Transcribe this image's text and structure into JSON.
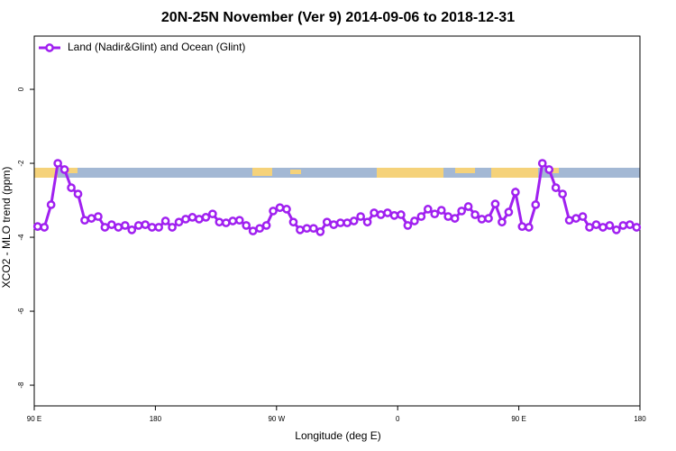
{
  "chart_data": {
    "type": "line",
    "title": "20N-25N November (Ver 9)   2014-09-06 to 2018-12-31",
    "x_label": "Longitude (deg E)",
    "y_label": "XCO2 - MLO trend (ppm)",
    "x": [
      92.5,
      97.5,
      102.5,
      107.5,
      112.5,
      117.5,
      122.5,
      127.5,
      132.5,
      137.5,
      142.5,
      147.5,
      152.5,
      157.5,
      162.5,
      167.5,
      172.5,
      177.5,
      182.5,
      187.5,
      192.5,
      197.5,
      202.5,
      207.5,
      212.5,
      217.5,
      222.5,
      227.5,
      232.5,
      237.5,
      242.5,
      247.5,
      252.5,
      257.5,
      262.5,
      267.5,
      272.5,
      277.5,
      282.5,
      287.5,
      292.5,
      297.5,
      302.5,
      307.5,
      312.5,
      317.5,
      322.5,
      327.5,
      332.5,
      337.5,
      342.5,
      347.5,
      352.5,
      357.5,
      362.5,
      367.5,
      372.5,
      377.5,
      382.5,
      387.5,
      392.5,
      397.5,
      402.5,
      407.5,
      412.5,
      417.5,
      422.5,
      427.5,
      432.5,
      437.5,
      442.5,
      447.5,
      452.5,
      457.5,
      462.5,
      467.5,
      472.5,
      477.5,
      482.5,
      487.5,
      492.5,
      497.5,
      502.5,
      507.5,
      512.5,
      517.5,
      522.5,
      527.5,
      532.5,
      537.5
    ],
    "series": [
      {
        "name": "Land (Nadir&Glint) and Ocean (Glint)",
        "color": "#a020f0",
        "values": [
          -3.71,
          -3.73,
          -3.12,
          -2.0,
          -2.17,
          -2.66,
          -2.83,
          -3.54,
          -3.49,
          -3.44,
          -3.73,
          -3.66,
          -3.73,
          -3.68,
          -3.8,
          -3.68,
          -3.66,
          -3.73,
          -3.73,
          -3.56,
          -3.73,
          -3.59,
          -3.51,
          -3.46,
          -3.51,
          -3.46,
          -3.37,
          -3.59,
          -3.61,
          -3.56,
          -3.54,
          -3.68,
          -3.83,
          -3.76,
          -3.68,
          -3.29,
          -3.2,
          -3.24,
          -3.59,
          -3.8,
          -3.76,
          -3.76,
          -3.85,
          -3.59,
          -3.66,
          -3.61,
          -3.61,
          -3.56,
          -3.44,
          -3.59,
          -3.34,
          -3.39,
          -3.34,
          -3.41,
          -3.39,
          -3.68,
          -3.56,
          -3.44,
          -3.24,
          -3.37,
          -3.27,
          -3.44,
          -3.49,
          -3.29,
          -3.17,
          -3.39,
          -3.51,
          -3.49,
          -3.1,
          -3.59,
          -3.32,
          -2.78,
          -3.71,
          -3.73,
          -3.12,
          -2.0,
          -2.17,
          -2.66,
          -2.83,
          -3.54,
          -3.49,
          -3.44,
          -3.73,
          -3.66,
          -3.73,
          -3.68,
          -3.8,
          -3.68,
          -3.66,
          -3.73
        ]
      }
    ],
    "xlim": [
      90,
      540
    ],
    "xticks": [
      {
        "value": 90,
        "label": "90 E"
      },
      180,
      {
        "value": 270,
        "label": "90 W"
      },
      {
        "value": 360,
        "label": "0"
      },
      {
        "value": 450,
        "label": "90 E"
      },
      {
        "value": 540,
        "label": "180"
      }
    ],
    "ylim": [
      -8.56,
      1.44
    ],
    "yticks": [
      0,
      -2,
      -4,
      -6,
      -8
    ],
    "legend": "top-left"
  }
}
